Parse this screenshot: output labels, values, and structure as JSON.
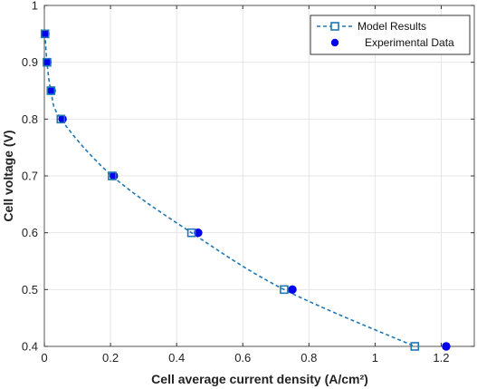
{
  "chart_data": {
    "type": "line",
    "title": "",
    "xlabel": "Cell average current density (A/cm²)",
    "ylabel": "Cell voltage (V)",
    "xlim": [
      0,
      1.3
    ],
    "ylim": [
      0.4,
      1.0
    ],
    "xticks": [
      "0",
      "0.2",
      "0.4",
      "0.6",
      "0.8",
      "1",
      "1.2"
    ],
    "xtick_values": [
      0,
      0.2,
      0.4,
      0.6,
      0.8,
      1.0,
      1.2
    ],
    "yticks": [
      "0.4",
      "0.5",
      "0.6",
      "0.7",
      "0.8",
      "0.9",
      "1"
    ],
    "ytick_values": [
      0.4,
      0.5,
      0.6,
      0.7,
      0.8,
      0.9,
      1.0
    ],
    "grid": true,
    "legend_position": "top-right",
    "series": [
      {
        "name": "Model Results",
        "style": "dashed line with open square markers",
        "color": "#1f77b4",
        "x": [
          0.002,
          0.008,
          0.02,
          0.05,
          0.205,
          0.445,
          0.725,
          1.12
        ],
        "y": [
          0.95,
          0.9,
          0.85,
          0.8,
          0.7,
          0.6,
          0.5,
          0.4
        ]
      },
      {
        "name": "Experimental Data",
        "style": "filled circle markers",
        "color": "#0000ee",
        "x": [
          0.003,
          0.009,
          0.022,
          0.055,
          0.21,
          0.465,
          0.75,
          1.215
        ],
        "y": [
          0.95,
          0.9,
          0.85,
          0.8,
          0.7,
          0.6,
          0.5,
          0.4
        ]
      }
    ]
  }
}
